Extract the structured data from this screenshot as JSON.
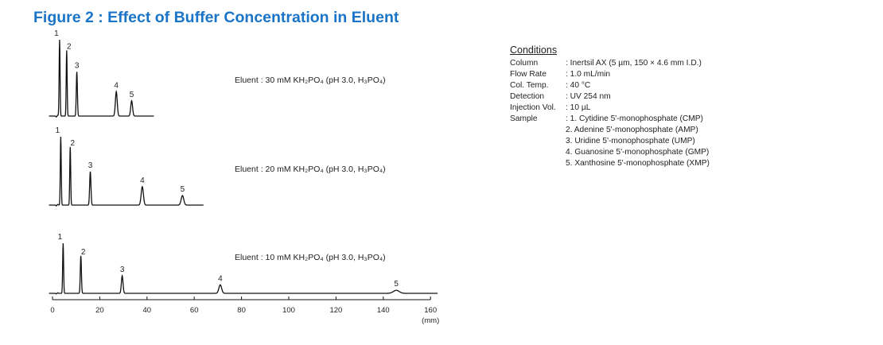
{
  "figure_title": "Figure 2 : Effect of Buffer Concentration in Eluent",
  "colors": {
    "title": "#1a74c7",
    "trace": "#111111",
    "text": "#222222"
  },
  "conditions": {
    "heading": "Conditions",
    "rows": [
      {
        "key": "Column",
        "values": [
          ": Inertsil AX (5 µm, 150 × 4.6 mm I.D.)"
        ]
      },
      {
        "key": "Flow Rate",
        "values": [
          ": 1.0 mL/min"
        ]
      },
      {
        "key": "Col. Temp.",
        "values": [
          ": 40 °C"
        ]
      },
      {
        "key": "Detection",
        "values": [
          ": UV 254 nm"
        ]
      },
      {
        "key": "Injection Vol.",
        "values": [
          ": 10 µL"
        ]
      },
      {
        "key": "Sample",
        "values": [
          ": 1. Cytidine 5'-monophosphate (CMP)",
          "  2. Adenine 5'-monophosphate (AMP)",
          "  3. Uridine 5'-monophosphate (UMP)",
          "  4. Guanosine 5'-monophosphate (GMP)",
          "  5. Xanthosine 5'-monophosphate (XMP)"
        ]
      }
    ]
  },
  "chart_data": {
    "type": "line",
    "title": "Figure 2 : Effect of Buffer Concentration in Eluent",
    "x_axis": {
      "ticks": [
        0,
        20,
        40,
        60,
        80,
        100,
        120,
        140,
        160
      ],
      "unit": "(mm)",
      "range": [
        0,
        160
      ]
    },
    "grid": false,
    "traces": [
      {
        "eluent_label": "Eluent : 30 mM KH₂PO₄ (pH 3.0, H₃PO₄)",
        "end_x": 43,
        "peaks": [
          {
            "label": "1",
            "x": 3,
            "height": 1.0,
            "width": 0.5
          },
          {
            "label": "2",
            "x": 6,
            "height": 0.86,
            "width": 0.5
          },
          {
            "label": "3",
            "x": 10.3,
            "height": 0.58,
            "width": 0.6
          },
          {
            "label": "4",
            "x": 27,
            "height": 0.32,
            "width": 1.0
          },
          {
            "label": "5",
            "x": 33.5,
            "height": 0.2,
            "width": 1.0
          }
        ]
      },
      {
        "eluent_label": "Eluent : 20 mM KH₂PO₄ (pH 3.0, H₃PO₄)",
        "end_x": 64,
        "peaks": [
          {
            "label": "1",
            "x": 3.5,
            "height": 1.0,
            "width": 0.5
          },
          {
            "label": "2",
            "x": 7.5,
            "height": 0.85,
            "width": 0.5
          },
          {
            "label": "3",
            "x": 16,
            "height": 0.49,
            "width": 0.7
          },
          {
            "label": "4",
            "x": 38,
            "height": 0.27,
            "width": 1.2
          },
          {
            "label": "5",
            "x": 55,
            "height": 0.14,
            "width": 1.4
          }
        ]
      },
      {
        "eluent_label": "Eluent : 10 mM KH₂PO₄ (pH 3.0, H₃PO₄)",
        "end_x": 163,
        "peaks": [
          {
            "label": "1",
            "x": 4.5,
            "height": 1.0,
            "width": 0.5
          },
          {
            "label": "2",
            "x": 12,
            "height": 0.75,
            "width": 0.6
          },
          {
            "label": "3",
            "x": 29.5,
            "height": 0.35,
            "width": 0.9
          },
          {
            "label": "4",
            "x": 71,
            "height": 0.17,
            "width": 1.5
          },
          {
            "label": "5",
            "x": 145.5,
            "height": 0.06,
            "width": 3.2
          }
        ]
      }
    ]
  }
}
